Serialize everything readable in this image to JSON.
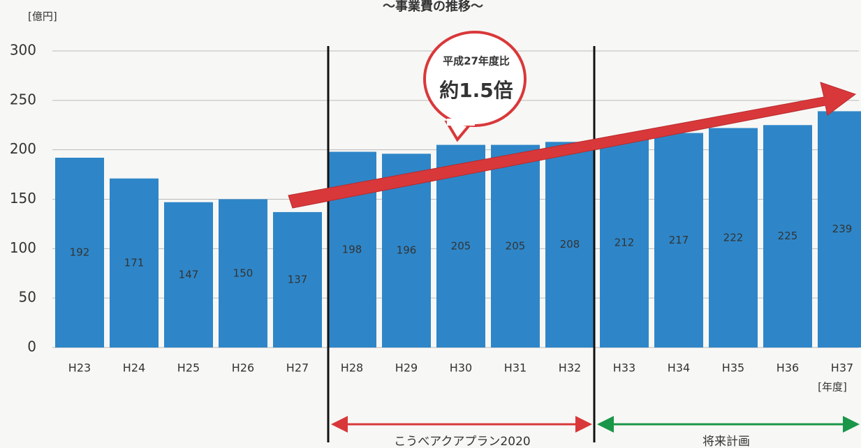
{
  "chart_data": {
    "type": "bar",
    "title": "～事業費の推移～",
    "y_unit": "[億円]",
    "x_unit": "[年度]",
    "categories": [
      "H23",
      "H24",
      "H25",
      "H26",
      "H27",
      "H28",
      "H29",
      "H30",
      "H31",
      "H32",
      "H33",
      "H34",
      "H35",
      "H36",
      "H37"
    ],
    "values": [
      192,
      171,
      147,
      150,
      137,
      198,
      196,
      205,
      205,
      208,
      212,
      217,
      222,
      225,
      239
    ],
    "color": "#2e86c8",
    "ylim": [
      0,
      300
    ],
    "yticks": [
      0,
      50,
      100,
      150,
      200,
      250,
      300
    ],
    "grid": true,
    "callout": [
      "平成27年度比",
      "約1.5倍"
    ],
    "periods": [
      "こうべアクアプラン2020",
      "将来計画"
    ]
  }
}
